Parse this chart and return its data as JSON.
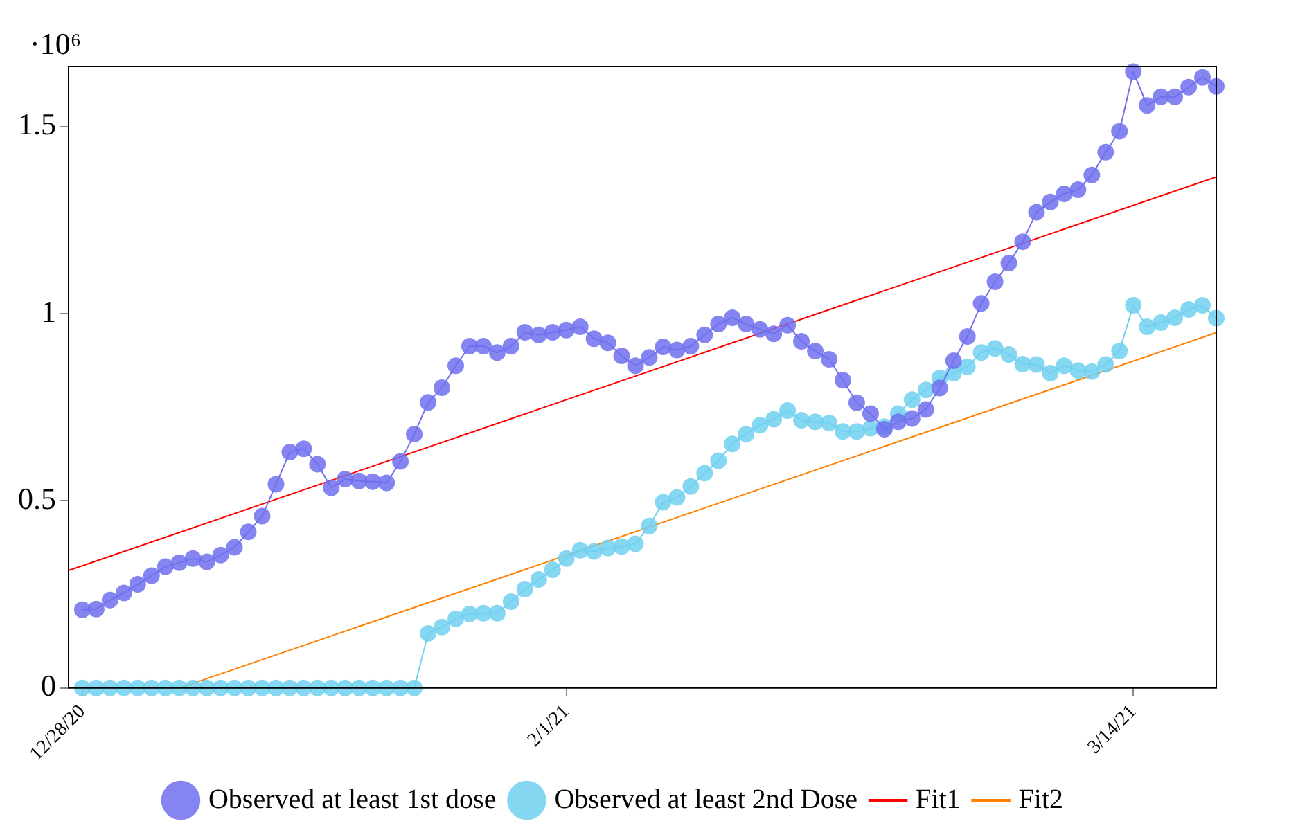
{
  "chart_data": {
    "type": "line",
    "ylabel": "·10⁶",
    "x": [
      "2020-12-28",
      "2020-12-29",
      "2020-12-30",
      "2020-12-31",
      "2021-01-01",
      "2021-01-02",
      "2021-01-03",
      "2021-01-04",
      "2021-01-05",
      "2021-01-06",
      "2021-01-07",
      "2021-01-08",
      "2021-01-09",
      "2021-01-10",
      "2021-01-11",
      "2021-01-12",
      "2021-01-13",
      "2021-01-14",
      "2021-01-15",
      "2021-01-16",
      "2021-01-17",
      "2021-01-18",
      "2021-01-19",
      "2021-01-20",
      "2021-01-21",
      "2021-01-22",
      "2021-01-23",
      "2021-01-24",
      "2021-01-25",
      "2021-01-26",
      "2021-01-27",
      "2021-01-28",
      "2021-01-29",
      "2021-01-30",
      "2021-01-31",
      "2021-02-01",
      "2021-02-02",
      "2021-02-03",
      "2021-02-04",
      "2021-02-05",
      "2021-02-06",
      "2021-02-07",
      "2021-02-08",
      "2021-02-09",
      "2021-02-10",
      "2021-02-11",
      "2021-02-12",
      "2021-02-13",
      "2021-02-14",
      "2021-02-15",
      "2021-02-16",
      "2021-02-17",
      "2021-02-18",
      "2021-02-19",
      "2021-02-20",
      "2021-02-21",
      "2021-02-22",
      "2021-02-23",
      "2021-02-24",
      "2021-02-25",
      "2021-02-26",
      "2021-02-27",
      "2021-02-28",
      "2021-03-01",
      "2021-03-02",
      "2021-03-03",
      "2021-03-04",
      "2021-03-05",
      "2021-03-06",
      "2021-03-07",
      "2021-03-08",
      "2021-03-09",
      "2021-03-10",
      "2021-03-11",
      "2021-03-12",
      "2021-03-13",
      "2021-03-14",
      "2021-03-15",
      "2021-03-16",
      "2021-03-17",
      "2021-03-18",
      "2021-03-19",
      "2021-03-20"
    ],
    "xlim": [
      "2020-12-27",
      "2021-03-20"
    ],
    "xticks": [
      {
        "value": "2020-12-28",
        "label": "12/28/20"
      },
      {
        "value": "2021-02-01",
        "label": "2/1/21"
      },
      {
        "value": "2021-03-14",
        "label": "3/14/21"
      }
    ],
    "ylim": [
      0,
      1.66
    ],
    "yticks": [
      0,
      0.5,
      1,
      1.5
    ],
    "legend": "bottom",
    "marker": "circle",
    "line_style": "solid",
    "series": [
      {
        "name": "Observed at least 1st dose",
        "color": "#7070ee",
        "values": [
          0.209,
          0.211,
          0.235,
          0.254,
          0.277,
          0.3,
          0.324,
          0.335,
          0.346,
          0.337,
          0.355,
          0.376,
          0.417,
          0.459,
          0.544,
          0.63,
          0.639,
          0.598,
          0.535,
          0.558,
          0.553,
          0.551,
          0.548,
          0.605,
          0.678,
          0.763,
          0.802,
          0.861,
          0.913,
          0.913,
          0.896,
          0.913,
          0.95,
          0.943,
          0.95,
          0.956,
          0.965,
          0.933,
          0.922,
          0.887,
          0.861,
          0.883,
          0.911,
          0.903,
          0.913,
          0.943,
          0.972,
          0.989,
          0.972,
          0.958,
          0.946,
          0.969,
          0.926,
          0.9,
          0.878,
          0.822,
          0.762,
          0.733,
          0.691,
          0.711,
          0.72,
          0.744,
          0.801,
          0.874,
          0.939,
          1.027,
          1.085,
          1.135,
          1.192,
          1.271,
          1.298,
          1.32,
          1.331,
          1.37,
          1.431,
          1.487,
          1.646,
          1.556,
          1.579,
          1.579,
          1.605,
          1.631,
          1.607
        ]
      },
      {
        "name": "Observed at least 2nd Dose",
        "color": "#70d0f0",
        "values": [
          0,
          0,
          0,
          0,
          0,
          0,
          0,
          0,
          0,
          0,
          0,
          0,
          0,
          0,
          0,
          0,
          0,
          0,
          0,
          0,
          0,
          0,
          0,
          0,
          0,
          0.146,
          0.163,
          0.185,
          0.198,
          0.2,
          0.2,
          0.231,
          0.264,
          0.29,
          0.316,
          0.346,
          0.368,
          0.365,
          0.374,
          0.378,
          0.385,
          0.433,
          0.496,
          0.509,
          0.538,
          0.574,
          0.607,
          0.652,
          0.678,
          0.702,
          0.718,
          0.741,
          0.715,
          0.711,
          0.708,
          0.685,
          0.685,
          0.694,
          0.698,
          0.733,
          0.77,
          0.796,
          0.828,
          0.841,
          0.858,
          0.896,
          0.907,
          0.891,
          0.865,
          0.864,
          0.841,
          0.861,
          0.848,
          0.845,
          0.864,
          0.9,
          1.022,
          0.965,
          0.976,
          0.989,
          1.011,
          1.022,
          0.988
        ]
      },
      {
        "name": "Fit1",
        "color": "#ff0000",
        "marker": "none",
        "x": [
          "2020-12-27",
          "2021-03-20"
        ],
        "values": [
          0.314,
          1.365
        ]
      },
      {
        "name": "Fit2",
        "color": "#ff8000",
        "marker": "none",
        "x": [
          "2021-01-04",
          "2021-03-20"
        ],
        "values": [
          0,
          0.949
        ]
      }
    ]
  }
}
